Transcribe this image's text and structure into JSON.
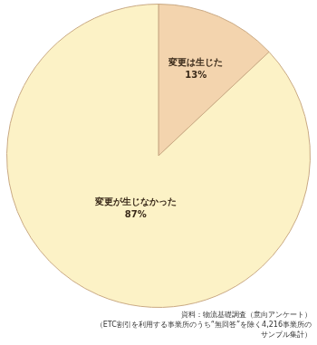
{
  "chart_data": {
    "type": "pie",
    "categories": [
      "変更は生じた",
      "変更が生じなかった"
    ],
    "values": [
      13,
      87
    ],
    "value_labels": [
      "13%",
      "87%"
    ],
    "colors": [
      "#f3d4ae",
      "#fcf2c6"
    ],
    "data_labels": true,
    "source": [
      "資料：物流基礎調査（意向アンケート）",
      "（ETC割引を利用する事業所のうち“無回答”を除く4,216事業所の",
      "サンプル集計）"
    ]
  }
}
